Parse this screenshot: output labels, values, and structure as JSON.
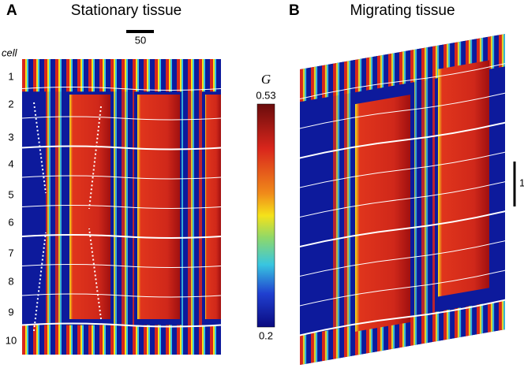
{
  "panels": [
    {
      "letter": "A",
      "title": "Stationary tissue"
    },
    {
      "letter": "B",
      "title": "Migrating tissue"
    }
  ],
  "scale_bar_x": "50",
  "row_axis": {
    "title": "cell",
    "labels": [
      "1",
      "2",
      "3",
      "4",
      "5",
      "6",
      "7",
      "8",
      "9",
      "10"
    ]
  },
  "colorbar": {
    "label": "G",
    "ticks": [
      0.53,
      0.2
    ]
  },
  "scale_bar_y": "1"
}
